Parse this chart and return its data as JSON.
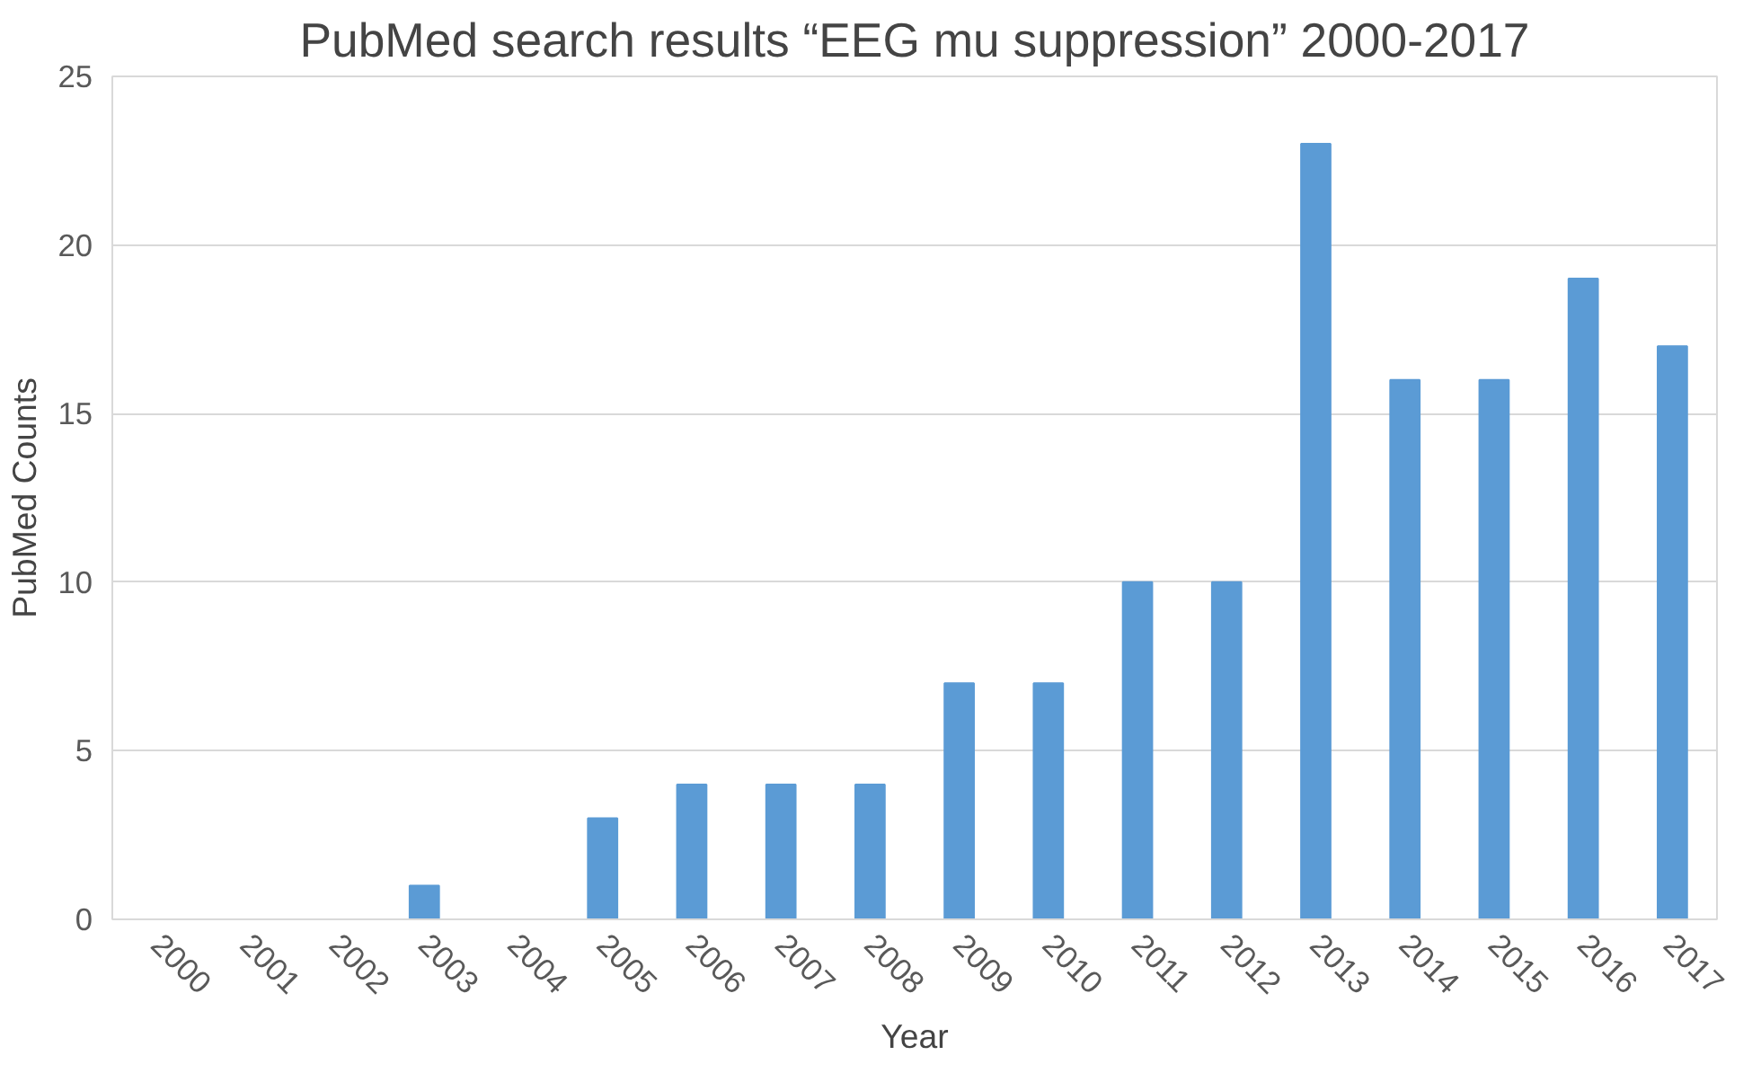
{
  "chart_data": {
    "type": "bar",
    "title": "PubMed search results “EEG mu suppression” 2000-2017",
    "xlabel": "Year",
    "ylabel": "PubMed Counts",
    "categories": [
      "2000",
      "2001",
      "2002",
      "2003",
      "2004",
      "2005",
      "2006",
      "2007",
      "2008",
      "2009",
      "2010",
      "2011",
      "2012",
      "2013",
      "2014",
      "2015",
      "2016",
      "2017"
    ],
    "values": [
      0,
      0,
      0,
      1,
      0,
      3,
      4,
      4,
      4,
      7,
      7,
      10,
      10,
      23,
      16,
      16,
      19,
      17
    ],
    "color": "#5b9bd5",
    "ylim": [
      0,
      25
    ],
    "yticks": [
      0,
      5,
      10,
      15,
      20,
      25
    ],
    "grid": "y"
  }
}
